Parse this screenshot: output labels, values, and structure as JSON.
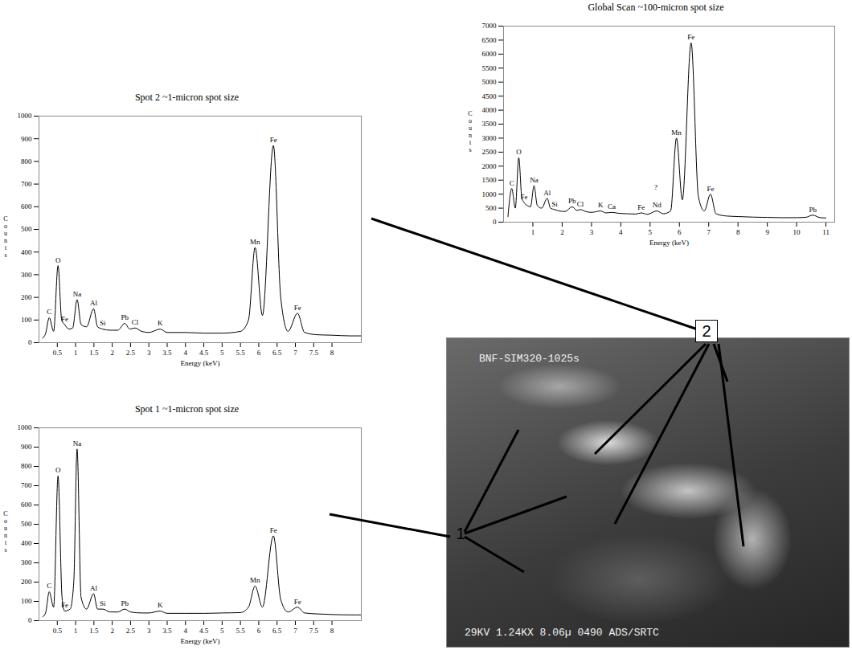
{
  "chart_data": [
    {
      "type": "line",
      "title": "Global Scan ~100-micron spot size",
      "xlabel": "Energy (keV)",
      "ylabel": "Counts",
      "color": "#000000",
      "xlim": [
        0,
        11.3
      ],
      "xticks": [
        1,
        2,
        3,
        4,
        5,
        6,
        7,
        8,
        9,
        10,
        11
      ],
      "ylim": [
        0,
        7000
      ],
      "yticks": [
        0,
        500,
        1000,
        1500,
        2000,
        2500,
        3000,
        3500,
        4000,
        4500,
        5000,
        5500,
        6000,
        6500,
        7000
      ],
      "x": [
        0.15,
        0.28,
        0.4,
        0.52,
        0.62,
        0.7,
        0.8,
        0.92,
        1.04,
        1.15,
        1.3,
        1.49,
        1.6,
        1.74,
        1.9,
        2.1,
        2.34,
        2.5,
        2.62,
        2.8,
        3.0,
        3.31,
        3.5,
        3.69,
        3.9,
        4.2,
        4.5,
        4.7,
        4.9,
        5.23,
        5.45,
        5.7,
        5.9,
        6.1,
        6.4,
        6.65,
        6.85,
        7.06,
        7.25,
        7.6,
        8,
        8.5,
        9,
        9.5,
        10,
        10.3,
        10.55,
        10.8,
        11
      ],
      "values": [
        200,
        1200,
        500,
        2300,
        900,
        700,
        600,
        550,
        1300,
        600,
        500,
        850,
        500,
        450,
        400,
        380,
        550,
        420,
        450,
        380,
        350,
        400,
        330,
        350,
        320,
        300,
        290,
        330,
        280,
        400,
        300,
        400,
        3000,
        800,
        6400,
        900,
        400,
        1000,
        300,
        220,
        200,
        180,
        170,
        160,
        160,
        170,
        250,
        160,
        150
      ],
      "annotations": [
        {
          "text": "C",
          "x": 0.28,
          "y": 1200
        },
        {
          "text": "O",
          "x": 0.52,
          "y": 2300
        },
        {
          "text": "Fe",
          "x": 0.7,
          "y": 700
        },
        {
          "text": "Na",
          "x": 1.04,
          "y": 1300
        },
        {
          "text": "Al",
          "x": 1.49,
          "y": 850
        },
        {
          "text": "Si",
          "x": 1.74,
          "y": 450
        },
        {
          "text": "Pb",
          "x": 2.34,
          "y": 550
        },
        {
          "text": "Cl",
          "x": 2.62,
          "y": 450
        },
        {
          "text": "K",
          "x": 3.31,
          "y": 400
        },
        {
          "text": "Ca",
          "x": 3.69,
          "y": 350
        },
        {
          "text": "Fe",
          "x": 4.7,
          "y": 330
        },
        {
          "text": "Nd",
          "x": 5.23,
          "y": 400
        },
        {
          "text": "?",
          "x": 5.2,
          "y": 1050
        },
        {
          "text": "Mn",
          "x": 5.9,
          "y": 3000
        },
        {
          "text": "Fe",
          "x": 6.4,
          "y": 6400
        },
        {
          "text": "Fe",
          "x": 7.06,
          "y": 1000
        },
        {
          "text": "Pb",
          "x": 10.55,
          "y": 250
        }
      ]
    },
    {
      "type": "line",
      "title": "Spot 2 ~1-micron spot size",
      "xlabel": "Energy (keV)",
      "ylabel": "Counts",
      "color": "#000000",
      "xlim": [
        0,
        8.8
      ],
      "xticks": [
        0.5,
        1,
        1.5,
        2,
        2.5,
        3,
        3.5,
        4,
        4.5,
        5,
        5.5,
        6,
        6.5,
        7,
        7.5,
        8
      ],
      "ylim": [
        0,
        1000
      ],
      "yticks": [
        0,
        100,
        200,
        300,
        400,
        500,
        600,
        700,
        800,
        900,
        1000
      ],
      "x": [
        0.1,
        0.18,
        0.28,
        0.4,
        0.52,
        0.62,
        0.7,
        0.82,
        0.92,
        1.04,
        1.15,
        1.3,
        1.49,
        1.6,
        1.74,
        1.95,
        2.15,
        2.34,
        2.48,
        2.62,
        2.8,
        3.0,
        3.31,
        3.5,
        4,
        4.5,
        5,
        5.5,
        5.72,
        5.9,
        6.1,
        6.4,
        6.6,
        6.8,
        7.06,
        7.25,
        7.6,
        8,
        8.5,
        8.8
      ],
      "values": [
        20,
        40,
        110,
        50,
        340,
        100,
        80,
        60,
        65,
        190,
        80,
        70,
        150,
        70,
        60,
        55,
        55,
        85,
        60,
        65,
        50,
        45,
        60,
        45,
        45,
        42,
        42,
        50,
        100,
        420,
        120,
        870,
        200,
        50,
        130,
        45,
        35,
        33,
        30,
        30
      ],
      "annotations": [
        {
          "text": "C",
          "x": 0.28,
          "y": 110
        },
        {
          "text": "O",
          "x": 0.52,
          "y": 340
        },
        {
          "text": "Fe",
          "x": 0.7,
          "y": 80
        },
        {
          "text": "Na",
          "x": 1.04,
          "y": 190
        },
        {
          "text": "Al",
          "x": 1.49,
          "y": 150
        },
        {
          "text": "Si",
          "x": 1.74,
          "y": 60
        },
        {
          "text": "Pb",
          "x": 2.34,
          "y": 85
        },
        {
          "text": "Cl",
          "x": 2.62,
          "y": 65
        },
        {
          "text": "K",
          "x": 3.31,
          "y": 60
        },
        {
          "text": "Mn",
          "x": 5.9,
          "y": 420
        },
        {
          "text": "Fe",
          "x": 6.4,
          "y": 870
        },
        {
          "text": "Fe",
          "x": 7.06,
          "y": 130
        }
      ]
    },
    {
      "type": "line",
      "title": "Spot 1 ~1-micron spot size",
      "xlabel": "Energy (keV)",
      "ylabel": "Counts",
      "color": "#000000",
      "xlim": [
        0,
        8.8
      ],
      "xticks": [
        0.5,
        1,
        1.5,
        2,
        2.5,
        3,
        3.5,
        4,
        4.5,
        5,
        5.5,
        6,
        6.5,
        7,
        7.5,
        8
      ],
      "ylim": [
        0,
        1000
      ],
      "yticks": [
        0,
        100,
        200,
        300,
        400,
        500,
        600,
        700,
        800,
        900,
        1000
      ],
      "x": [
        0.1,
        0.18,
        0.28,
        0.4,
        0.52,
        0.63,
        0.7,
        0.85,
        0.95,
        1.04,
        1.15,
        1.3,
        1.49,
        1.6,
        1.74,
        1.95,
        2.15,
        2.34,
        2.5,
        2.8,
        3.0,
        3.31,
        3.5,
        4,
        4.5,
        5,
        5.5,
        5.72,
        5.9,
        6.1,
        6.4,
        6.6,
        6.8,
        7.06,
        7.25,
        7.6,
        8,
        8.5,
        8.8
      ],
      "values": [
        20,
        40,
        150,
        70,
        750,
        120,
        50,
        60,
        200,
        890,
        120,
        60,
        140,
        60,
        60,
        45,
        45,
        60,
        45,
        40,
        40,
        50,
        38,
        38,
        38,
        40,
        42,
        70,
        180,
        70,
        440,
        110,
        45,
        70,
        40,
        35,
        32,
        30,
        30
      ],
      "annotations": [
        {
          "text": "C",
          "x": 0.28,
          "y": 150
        },
        {
          "text": "O",
          "x": 0.52,
          "y": 750
        },
        {
          "text": "Fe",
          "x": 0.7,
          "y": 50
        },
        {
          "text": "Na",
          "x": 1.04,
          "y": 890
        },
        {
          "text": "Al",
          "x": 1.49,
          "y": 140
        },
        {
          "text": "Si",
          "x": 1.74,
          "y": 60
        },
        {
          "text": "Pb",
          "x": 2.34,
          "y": 60
        },
        {
          "text": "K",
          "x": 3.31,
          "y": 50
        },
        {
          "text": "Mn",
          "x": 5.9,
          "y": 180
        },
        {
          "text": "Fe",
          "x": 6.4,
          "y": 440
        },
        {
          "text": "Fe",
          "x": 7.06,
          "y": 70
        }
      ]
    }
  ],
  "image": {
    "caption_top": "BNF-SIM320-1025s",
    "caption_bottom": "29KV 1.24KX 8.06µ 0490 ADS/SRTC"
  },
  "callouts": [
    "1",
    "2"
  ]
}
